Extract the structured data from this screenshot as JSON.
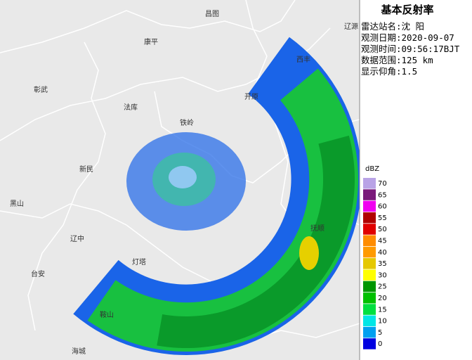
{
  "map": {
    "places": [
      "昌图",
      "辽源",
      "康平",
      "西丰",
      "彰武",
      "开原",
      "法库",
      "铁岭",
      "新民",
      "黑山",
      "辽中",
      "灯塔",
      "台安",
      "鞍山",
      "海城",
      "抚顺"
    ]
  },
  "panel": {
    "title": "基本反射率",
    "info": [
      "雷达站名:沈 阳",
      "观测日期:2020-09-07",
      "观测时间:09:56:17BJT",
      "数据范围:125 km",
      "显示仰角:1.5"
    ]
  },
  "legend": {
    "unit": "dBZ",
    "levels": [
      {
        "label": 70,
        "color": "#b9a3e6"
      },
      {
        "label": 65,
        "color": "#7a1a7a"
      },
      {
        "label": 60,
        "color": "#f000f0"
      },
      {
        "label": 55,
        "color": "#b00000"
      },
      {
        "label": 50,
        "color": "#e00000"
      },
      {
        "label": 45,
        "color": "#ff8c00"
      },
      {
        "label": 40,
        "color": "#ff9a00"
      },
      {
        "label": 35,
        "color": "#e5c800"
      },
      {
        "label": 30,
        "color": "#ffff00"
      },
      {
        "label": 25,
        "color": "#009600"
      },
      {
        "label": 20,
        "color": "#00c000"
      },
      {
        "label": 15,
        "color": "#00e040"
      },
      {
        "label": 10,
        "color": "#00e6e6"
      },
      {
        "label": 5,
        "color": "#00a0f0"
      },
      {
        "label": 0,
        "color": "#0000e0"
      }
    ]
  }
}
